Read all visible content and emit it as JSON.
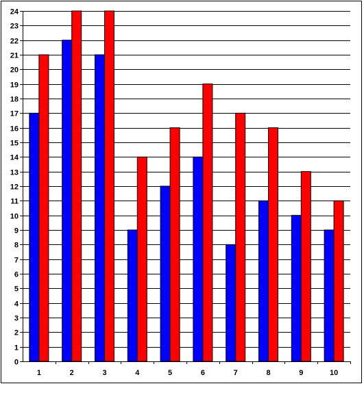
{
  "chart_data": {
    "type": "bar",
    "title": "",
    "xlabel": "",
    "ylabel": "",
    "categories": [
      "1",
      "2",
      "3",
      "4",
      "5",
      "6",
      "7",
      "8",
      "9",
      "10"
    ],
    "series": [
      {
        "values": [
          17,
          22,
          21,
          9,
          12,
          14,
          8,
          11,
          10,
          9
        ],
        "color": "#0000ff"
      },
      {
        "values": [
          21,
          24,
          24,
          14,
          16,
          19,
          17,
          16,
          13,
          11
        ],
        "color": "#ff0000"
      }
    ],
    "ylim": [
      0,
      24
    ],
    "yticks": [
      "0",
      "1",
      "2",
      "3",
      "4",
      "5",
      "6",
      "7",
      "8",
      "9",
      "10",
      "11",
      "12",
      "13",
      "14",
      "15",
      "16",
      "17",
      "18",
      "19",
      "20",
      "21",
      "22",
      "23",
      "24"
    ],
    "grid": true,
    "legend": "none"
  }
}
